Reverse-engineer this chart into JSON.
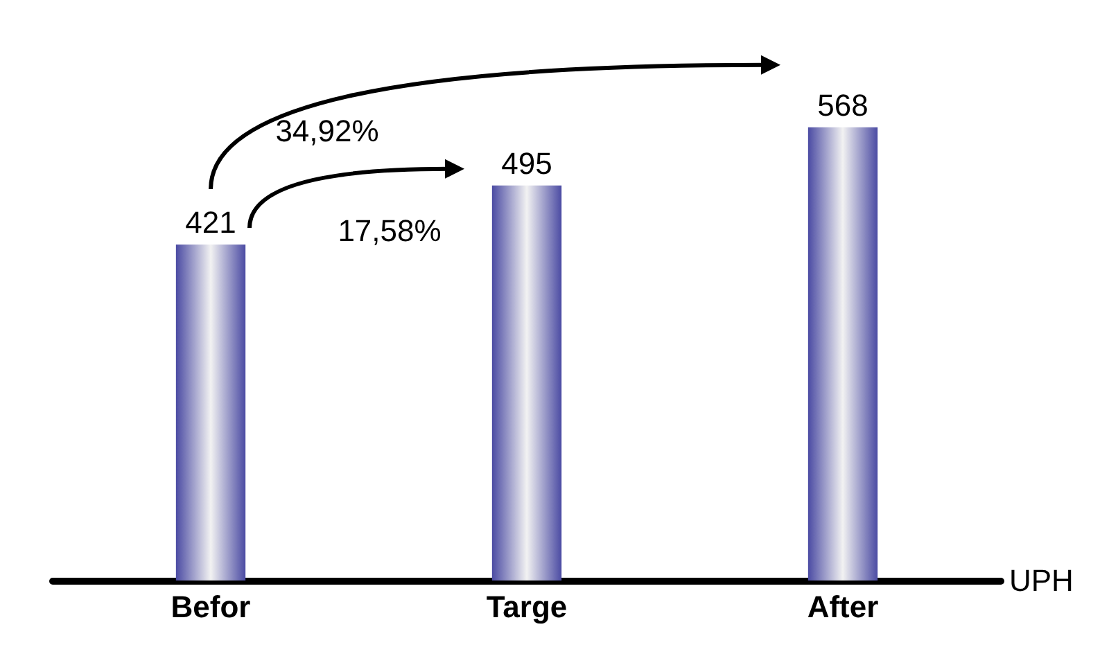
{
  "chart_data": {
    "type": "bar",
    "categories": [
      "Befor",
      "Targe",
      "After"
    ],
    "values": [
      421,
      495,
      568
    ],
    "color": "#4b4ba3",
    "data_labels": true,
    "xlabel": "UPH",
    "tick_labels": "x",
    "annotations": [
      "34,92%",
      "17,58%"
    ]
  }
}
